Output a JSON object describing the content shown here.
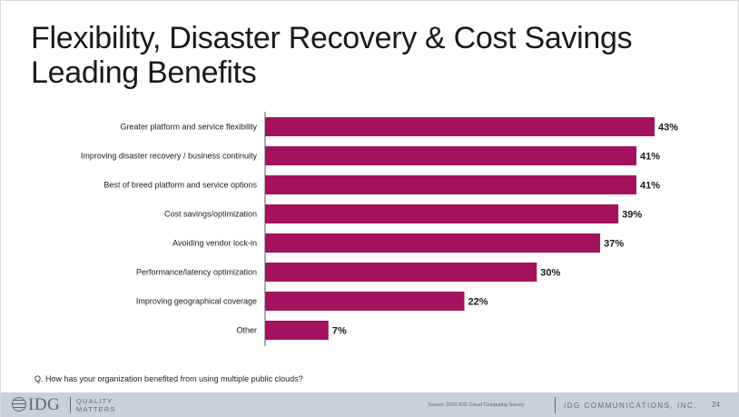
{
  "slide": {
    "title_line1": "Flexibility, Disaster Recovery & Cost Savings",
    "title_line2": "Leading Benefits",
    "question": "Q. How has your organization benefited from using multiple public clouds?"
  },
  "footer": {
    "logo_text": "IDG",
    "tagline_line1": "QUALITY",
    "tagline_line2": "MATTERS",
    "source": "Source: 2020 IDG Cloud Computing Survey",
    "company": "IDG COMMUNICATIONS, INC.",
    "page_number": "24"
  },
  "colors": {
    "bar": "#a3135d",
    "axis": "#555555",
    "text": "#1a1a1a"
  },
  "chart_data": {
    "type": "bar",
    "orientation": "horizontal",
    "title": "Flexibility, Disaster Recovery & Cost Savings Leading Benefits",
    "categories": [
      "Greater platform and service flexibility",
      "Improving disaster recovery / business continuity",
      "Best of breed platform and service options",
      "Cost savings/optimization",
      "Avoiding vendor lock-in",
      "Performance/latency optimization",
      "Improving geographical coverage",
      "Other"
    ],
    "values": [
      43,
      41,
      41,
      39,
      37,
      30,
      22,
      7
    ],
    "value_labels": [
      "43%",
      "41%",
      "41%",
      "39%",
      "37%",
      "30%",
      "22%",
      "7%"
    ],
    "unit": "%",
    "xlim": [
      0,
      43
    ],
    "grid": false,
    "xlabel": "",
    "ylabel": ""
  }
}
